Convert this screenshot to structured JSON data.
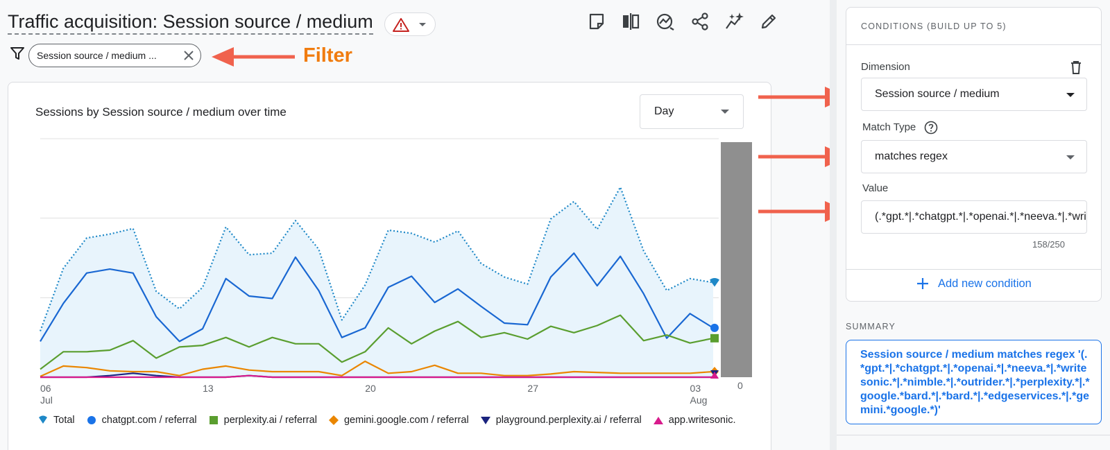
{
  "header": {
    "title": "Traffic acquisition: Session source / medium",
    "toolbar_icons": [
      "note-icon",
      "compare-icon",
      "insights-icon",
      "share-icon",
      "sparkle-icon",
      "edit-icon"
    ]
  },
  "filter": {
    "chip_label": "Session source / medium ...",
    "annotation_label": "Filter"
  },
  "chart_card": {
    "title": "Sessions by Session source / medium over time",
    "granularity": "Day"
  },
  "chart_data": {
    "type": "line",
    "x_ticks": [
      {
        "day": 0,
        "line1": "06",
        "line2": "Jul"
      },
      {
        "day": 7,
        "line1": "13",
        "line2": ""
      },
      {
        "day": 14,
        "line1": "20",
        "line2": ""
      },
      {
        "day": 21,
        "line1": "27",
        "line2": ""
      },
      {
        "day": 28,
        "line1": "03",
        "line2": "Aug"
      }
    ],
    "y_ticks": [
      "0"
    ],
    "ylim": [
      0,
      30
    ],
    "grid": true,
    "legend_position": "bottom",
    "series": [
      {
        "name": "Total",
        "color": "#1e88c7",
        "style": "dotted-area",
        "values": [
          5.8,
          13.7,
          17.5,
          18.0,
          18.7,
          10.8,
          8.6,
          11.3,
          18.9,
          15.4,
          15.6,
          19.7,
          16.1,
          7.2,
          11.6,
          18.5,
          18.1,
          17.0,
          18.4,
          14.3,
          12.6,
          11.7,
          19.9,
          22.1,
          18.6,
          23.9,
          15.9,
          10.9,
          12.4,
          11.9
        ]
      },
      {
        "name": "chatgpt.com / referral",
        "color": "#1967d2",
        "values": [
          4.5,
          9.3,
          13.1,
          13.6,
          13.1,
          7.6,
          4.5,
          6.1,
          12.4,
          10.2,
          9.9,
          15.1,
          10.9,
          5.0,
          6.2,
          11.3,
          12.7,
          9.4,
          11.1,
          8.9,
          6.8,
          6.6,
          12.6,
          15.6,
          11.5,
          15.2,
          10.5,
          4.9,
          8.0,
          6.2
        ]
      },
      {
        "name": "perplexity.ai / referral",
        "color": "#5a9e2f",
        "values": [
          1.0,
          3.2,
          3.2,
          3.4,
          4.6,
          2.4,
          3.8,
          4.0,
          5.0,
          3.8,
          5.0,
          4.2,
          4.2,
          1.9,
          3.2,
          6.2,
          4.2,
          5.8,
          7.0,
          5.0,
          5.6,
          4.8,
          6.4,
          5.6,
          6.5,
          7.8,
          4.6,
          5.3,
          4.3,
          4.9
        ]
      },
      {
        "name": "gemini.google.com / referral",
        "color": "#ea8600",
        "values": [
          0.1,
          1.4,
          1.2,
          0.8,
          0.7,
          0.7,
          0.2,
          1.0,
          1.4,
          0.9,
          0.7,
          0.7,
          0.7,
          0.2,
          2.0,
          0.5,
          0.7,
          1.5,
          0.5,
          0.5,
          0.2,
          0.2,
          0.4,
          0.7,
          0.6,
          0.5,
          0.5,
          0.5,
          0.5,
          0.7
        ]
      },
      {
        "name": "playground.perplexity.ai / referral",
        "color": "#1a237e",
        "values": [
          0,
          0,
          0,
          0.2,
          0.5,
          0.2,
          0,
          0,
          0,
          0.2,
          0,
          0,
          0,
          0,
          0,
          0,
          0,
          0,
          0,
          0,
          0,
          0,
          0,
          0,
          0,
          0,
          0,
          0,
          0,
          0
        ]
      },
      {
        "name": "app.writesonic.",
        "color": "#d81b8c",
        "values": [
          0,
          0,
          0,
          0,
          0,
          0,
          0,
          0,
          0,
          0.2,
          0,
          0,
          0,
          0,
          0,
          0,
          0,
          0,
          0,
          0,
          0,
          0,
          0,
          0,
          0,
          0,
          0,
          0,
          0,
          0
        ]
      }
    ]
  },
  "legend": [
    {
      "label": "Total",
      "marker": "total",
      "color": "#1e88c7"
    },
    {
      "label": "chatgpt.com / referral",
      "marker": "circle",
      "color": "#1a73e8"
    },
    {
      "label": "perplexity.ai / referral",
      "marker": "square",
      "color": "#5a9e2f"
    },
    {
      "label": "gemini.google.com / referral",
      "marker": "diamond",
      "color": "#ea8600"
    },
    {
      "label": "playground.perplexity.ai / referral",
      "marker": "triangle-down",
      "color": "#1a237e"
    },
    {
      "label": "app.writesonic.",
      "marker": "triangle-up",
      "color": "#d81b8c"
    }
  ],
  "conditions": {
    "title": "CONDITIONS (BUILD UP TO 5)",
    "dimension_label": "Dimension",
    "dimension_value": "Session source / medium",
    "match_type_label": "Match Type",
    "match_type_value": "matches regex",
    "value_label": "Value",
    "value": "(.*gpt.*|.*chatgpt.*|.*openai.*|.*neeva.*|.*writesonic.*|.*nimble.*|.*outrider.*|.*perplexity.*|.*google.*bard.*|.*bard.*|.*edgeservices.*|.*gemini.*google.*)",
    "char_count": "158/250",
    "add_condition_label": "Add new condition"
  },
  "summary": {
    "label": "SUMMARY",
    "text": "Session source / medium matches regex '(.*gpt.*|.*chatgpt.*|.*openai.*|.*neeva.*|.*writesonic.*|.*nimble.*|.*outrider.*|.*perplexity.*|.*google.*bard.*|.*bard.*|.*edgeservices.*|.*gemini.*google.*)'"
  },
  "colors": {
    "accent": "#1a73e8",
    "annotation": "#f0624d",
    "filter_label": "#f07c0f"
  }
}
